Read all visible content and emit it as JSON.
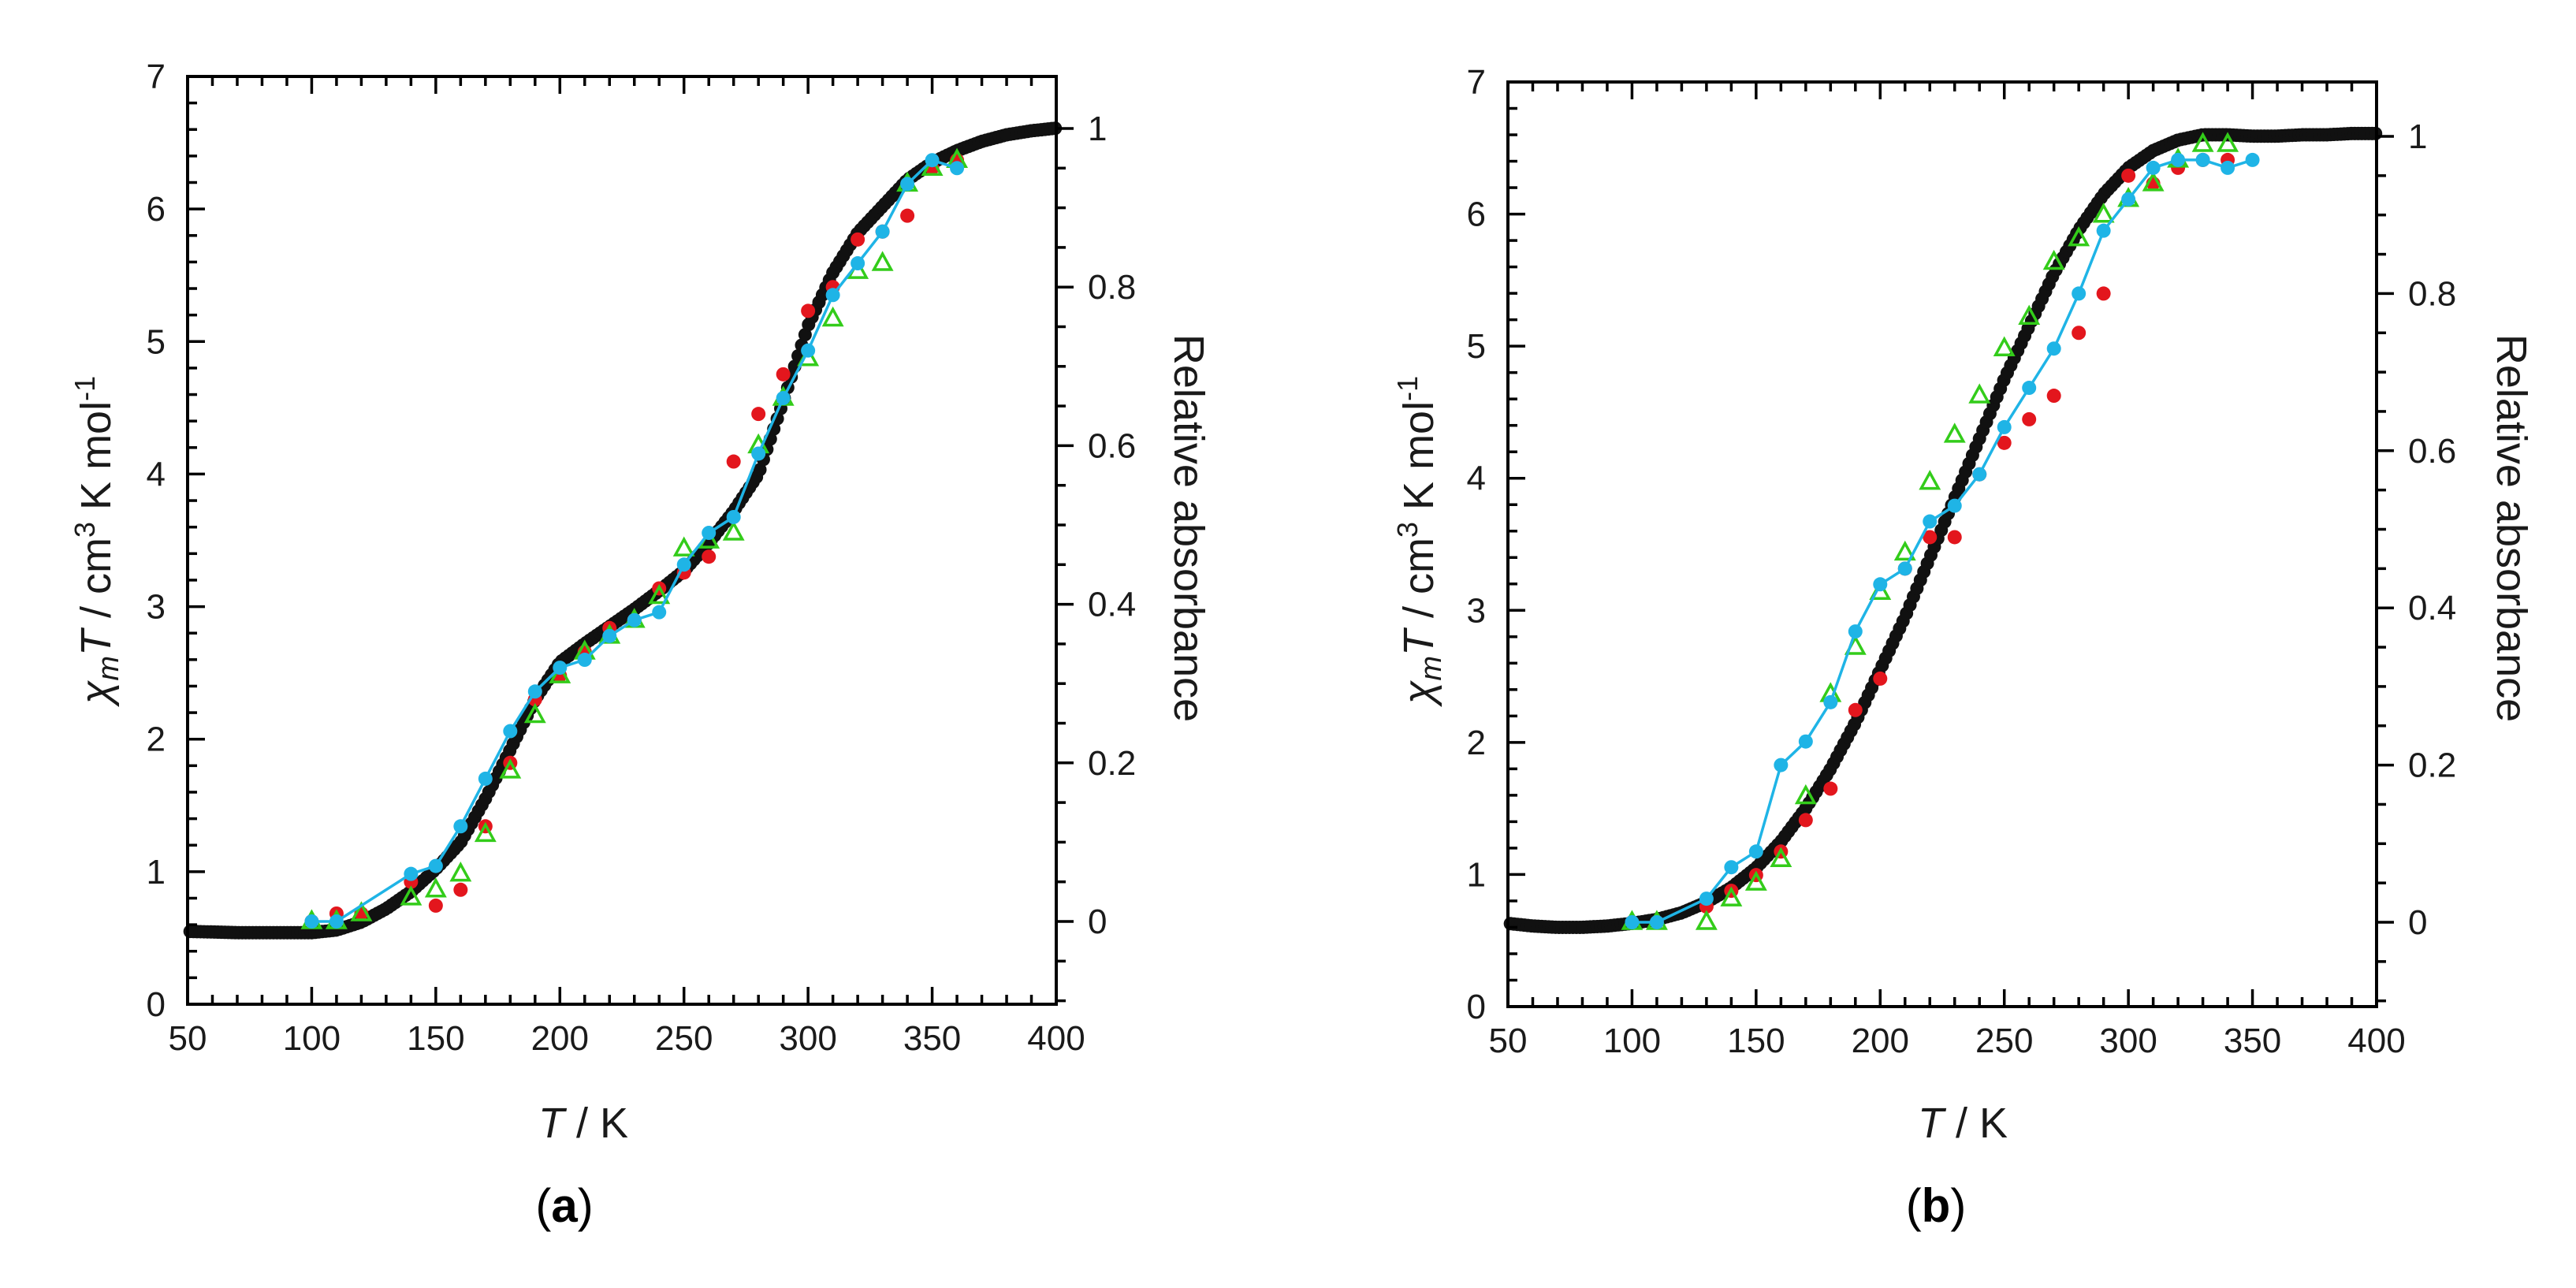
{
  "colors": {
    "black_series": "#111111",
    "red_series": "#e3161d",
    "green_series": "#33cc1a",
    "cyan_series": "#1fb4e6"
  },
  "chart_data": [
    {
      "type": "scatter",
      "panel": "(a)",
      "xlabel": "T / K",
      "ylabel": "χmT / cm3 K mol-1",
      "ylabel2": "Relative absorbance",
      "xlim": [
        50,
        400
      ],
      "ylim": [
        0,
        7
      ],
      "y2lim": [
        -0.1,
        1.05
      ],
      "xticks": [
        "50",
        "100",
        "150",
        "200",
        "250",
        "300",
        "350",
        "400"
      ],
      "yticks": [
        "0",
        "1",
        "2",
        "3",
        "4",
        "5",
        "6",
        "7"
      ],
      "y2ticks": [
        "0",
        "0.2",
        "0.4",
        "0.6",
        "0.8",
        "1"
      ],
      "series": [
        {
          "name": "magnetic",
          "axis": "left",
          "marker": "circle",
          "color": "#111111",
          "curve": [
            [
              50,
              0.55
            ],
            [
              70,
              0.54
            ],
            [
              90,
              0.54
            ],
            [
              100,
              0.54
            ],
            [
              110,
              0.56
            ],
            [
              120,
              0.62
            ],
            [
              130,
              0.72
            ],
            [
              140,
              0.85
            ],
            [
              150,
              1.02
            ],
            [
              160,
              1.22
            ],
            [
              170,
              1.55
            ],
            [
              180,
              1.92
            ],
            [
              190,
              2.3
            ],
            [
              200,
              2.58
            ],
            [
              210,
              2.72
            ],
            [
              220,
              2.85
            ],
            [
              230,
              2.98
            ],
            [
              240,
              3.12
            ],
            [
              250,
              3.27
            ],
            [
              260,
              3.48
            ],
            [
              270,
              3.72
            ],
            [
              280,
              4.0
            ],
            [
              290,
              4.55
            ],
            [
              300,
              5.12
            ],
            [
              310,
              5.52
            ],
            [
              320,
              5.82
            ],
            [
              330,
              6.02
            ],
            [
              340,
              6.22
            ],
            [
              350,
              6.35
            ],
            [
              360,
              6.44
            ],
            [
              370,
              6.51
            ],
            [
              380,
              6.56
            ],
            [
              390,
              6.59
            ],
            [
              400,
              6.61
            ]
          ]
        },
        {
          "name": "red",
          "axis": "right",
          "marker": "circle",
          "color": "#e3161d",
          "points": [
            [
              100,
              0.0
            ],
            [
              110,
              0.01
            ],
            [
              120,
              0.01
            ],
            [
              140,
              0.05
            ],
            [
              150,
              0.02
            ],
            [
              160,
              0.04
            ],
            [
              170,
              0.12
            ],
            [
              180,
              0.2
            ],
            [
              190,
              0.28
            ],
            [
              200,
              0.31
            ],
            [
              210,
              0.34
            ],
            [
              220,
              0.37
            ],
            [
              230,
              0.38
            ],
            [
              240,
              0.42
            ],
            [
              250,
              0.44
            ],
            [
              260,
              0.46
            ],
            [
              270,
              0.58
            ],
            [
              280,
              0.64
            ],
            [
              290,
              0.69
            ],
            [
              300,
              0.77
            ],
            [
              310,
              0.8
            ],
            [
              320,
              0.86
            ],
            [
              330,
              0.87
            ],
            [
              340,
              0.89
            ],
            [
              350,
              0.95
            ],
            [
              360,
              0.96
            ]
          ]
        },
        {
          "name": "green",
          "axis": "right",
          "marker": "triangle",
          "color": "#33cc1a",
          "points": [
            [
              100,
              0.0
            ],
            [
              110,
              0.0
            ],
            [
              120,
              0.01
            ],
            [
              140,
              0.03
            ],
            [
              150,
              0.04
            ],
            [
              160,
              0.06
            ],
            [
              170,
              0.11
            ],
            [
              180,
              0.19
            ],
            [
              190,
              0.26
            ],
            [
              200,
              0.31
            ],
            [
              210,
              0.34
            ],
            [
              220,
              0.36
            ],
            [
              230,
              0.38
            ],
            [
              240,
              0.41
            ],
            [
              250,
              0.47
            ],
            [
              260,
              0.48
            ],
            [
              270,
              0.49
            ],
            [
              280,
              0.6
            ],
            [
              290,
              0.66
            ],
            [
              300,
              0.71
            ],
            [
              310,
              0.76
            ],
            [
              320,
              0.82
            ],
            [
              330,
              0.83
            ],
            [
              340,
              0.93
            ],
            [
              350,
              0.95
            ],
            [
              360,
              0.96
            ]
          ]
        },
        {
          "name": "cyan",
          "axis": "right",
          "marker": "circle-line",
          "color": "#1fb4e6",
          "points": [
            [
              100,
              0.0
            ],
            [
              110,
              0.0
            ],
            [
              140,
              0.06
            ],
            [
              150,
              0.07
            ],
            [
              160,
              0.12
            ],
            [
              170,
              0.18
            ],
            [
              180,
              0.24
            ],
            [
              190,
              0.29
            ],
            [
              200,
              0.32
            ],
            [
              210,
              0.33
            ],
            [
              220,
              0.36
            ],
            [
              230,
              0.38
            ],
            [
              240,
              0.39
            ],
            [
              250,
              0.45
            ],
            [
              260,
              0.49
            ],
            [
              270,
              0.51
            ],
            [
              280,
              0.59
            ],
            [
              290,
              0.66
            ],
            [
              300,
              0.72
            ],
            [
              310,
              0.79
            ],
            [
              320,
              0.83
            ],
            [
              330,
              0.87
            ],
            [
              340,
              0.93
            ],
            [
              350,
              0.96
            ],
            [
              360,
              0.95
            ]
          ]
        }
      ]
    },
    {
      "type": "scatter",
      "panel": "(b)",
      "xlabel": "T / K",
      "ylabel": "χmT / cm3 K mol-1",
      "ylabel2": "Relative absorbance",
      "xlim": [
        50,
        400
      ],
      "ylim": [
        0,
        7
      ],
      "y2lim": [
        -0.1,
        1.05
      ],
      "xticks": [
        "50",
        "100",
        "150",
        "200",
        "250",
        "300",
        "350",
        "400"
      ],
      "yticks": [
        "0",
        "1",
        "2",
        "3",
        "4",
        "5",
        "6",
        "7"
      ],
      "y2ticks": [
        "0",
        "0.2",
        "0.4",
        "0.6",
        "0.8",
        "1"
      ],
      "series": [
        {
          "name": "magnetic",
          "axis": "left",
          "marker": "circle",
          "color": "#111111",
          "curve": [
            [
              50,
              0.63
            ],
            [
              60,
              0.61
            ],
            [
              70,
              0.6
            ],
            [
              80,
              0.6
            ],
            [
              90,
              0.61
            ],
            [
              100,
              0.63
            ],
            [
              110,
              0.66
            ],
            [
              120,
              0.71
            ],
            [
              130,
              0.79
            ],
            [
              140,
              0.9
            ],
            [
              150,
              1.05
            ],
            [
              160,
              1.25
            ],
            [
              170,
              1.5
            ],
            [
              180,
              1.8
            ],
            [
              190,
              2.15
            ],
            [
              200,
              2.55
            ],
            [
              210,
              2.95
            ],
            [
              220,
              3.4
            ],
            [
              230,
              3.85
            ],
            [
              240,
              4.3
            ],
            [
              250,
              4.75
            ],
            [
              260,
              5.15
            ],
            [
              270,
              5.55
            ],
            [
              280,
              5.88
            ],
            [
              290,
              6.15
            ],
            [
              300,
              6.35
            ],
            [
              310,
              6.48
            ],
            [
              320,
              6.56
            ],
            [
              330,
              6.6
            ],
            [
              340,
              6.6
            ],
            [
              350,
              6.59
            ],
            [
              360,
              6.59
            ],
            [
              370,
              6.6
            ],
            [
              380,
              6.6
            ],
            [
              390,
              6.61
            ],
            [
              400,
              6.61
            ]
          ]
        },
        {
          "name": "red",
          "axis": "right",
          "marker": "circle",
          "color": "#e3161d",
          "points": [
            [
              100,
              0.0
            ],
            [
              110,
              0.0
            ],
            [
              130,
              0.02
            ],
            [
              140,
              0.04
            ],
            [
              150,
              0.06
            ],
            [
              160,
              0.09
            ],
            [
              170,
              0.13
            ],
            [
              180,
              0.17
            ],
            [
              190,
              0.27
            ],
            [
              200,
              0.31
            ],
            [
              210,
              0.45
            ],
            [
              220,
              0.49
            ],
            [
              230,
              0.49
            ],
            [
              240,
              0.57
            ],
            [
              250,
              0.61
            ],
            [
              260,
              0.64
            ],
            [
              270,
              0.67
            ],
            [
              280,
              0.75
            ],
            [
              290,
              0.8
            ],
            [
              300,
              0.95
            ],
            [
              310,
              0.94
            ],
            [
              320,
              0.96
            ],
            [
              330,
              0.97
            ],
            [
              340,
              0.97
            ]
          ]
        },
        {
          "name": "green",
          "axis": "right",
          "marker": "triangle",
          "color": "#33cc1a",
          "points": [
            [
              100,
              0.0
            ],
            [
              110,
              0.0
            ],
            [
              130,
              0.0
            ],
            [
              140,
              0.03
            ],
            [
              150,
              0.05
            ],
            [
              160,
              0.08
            ],
            [
              170,
              0.16
            ],
            [
              180,
              0.29
            ],
            [
              190,
              0.35
            ],
            [
              200,
              0.42
            ],
            [
              210,
              0.47
            ],
            [
              220,
              0.56
            ],
            [
              230,
              0.62
            ],
            [
              240,
              0.67
            ],
            [
              250,
              0.73
            ],
            [
              260,
              0.77
            ],
            [
              270,
              0.84
            ],
            [
              280,
              0.87
            ],
            [
              290,
              0.9
            ],
            [
              300,
              0.92
            ],
            [
              310,
              0.94
            ],
            [
              320,
              0.97
            ],
            [
              330,
              0.99
            ],
            [
              340,
              0.99
            ]
          ]
        },
        {
          "name": "cyan",
          "axis": "right",
          "marker": "circle-line",
          "color": "#1fb4e6",
          "points": [
            [
              100,
              0.0
            ],
            [
              110,
              0.0
            ],
            [
              130,
              0.03
            ],
            [
              140,
              0.07
            ],
            [
              150,
              0.09
            ],
            [
              160,
              0.2
            ],
            [
              170,
              0.23
            ],
            [
              180,
              0.28
            ],
            [
              190,
              0.37
            ],
            [
              200,
              0.43
            ],
            [
              210,
              0.45
            ],
            [
              220,
              0.51
            ],
            [
              230,
              0.53
            ],
            [
              240,
              0.57
            ],
            [
              250,
              0.63
            ],
            [
              260,
              0.68
            ],
            [
              270,
              0.73
            ],
            [
              280,
              0.8
            ],
            [
              290,
              0.88
            ],
            [
              300,
              0.92
            ],
            [
              310,
              0.96
            ],
            [
              320,
              0.97
            ],
            [
              330,
              0.97
            ],
            [
              340,
              0.96
            ],
            [
              350,
              0.97
            ]
          ]
        }
      ]
    }
  ]
}
